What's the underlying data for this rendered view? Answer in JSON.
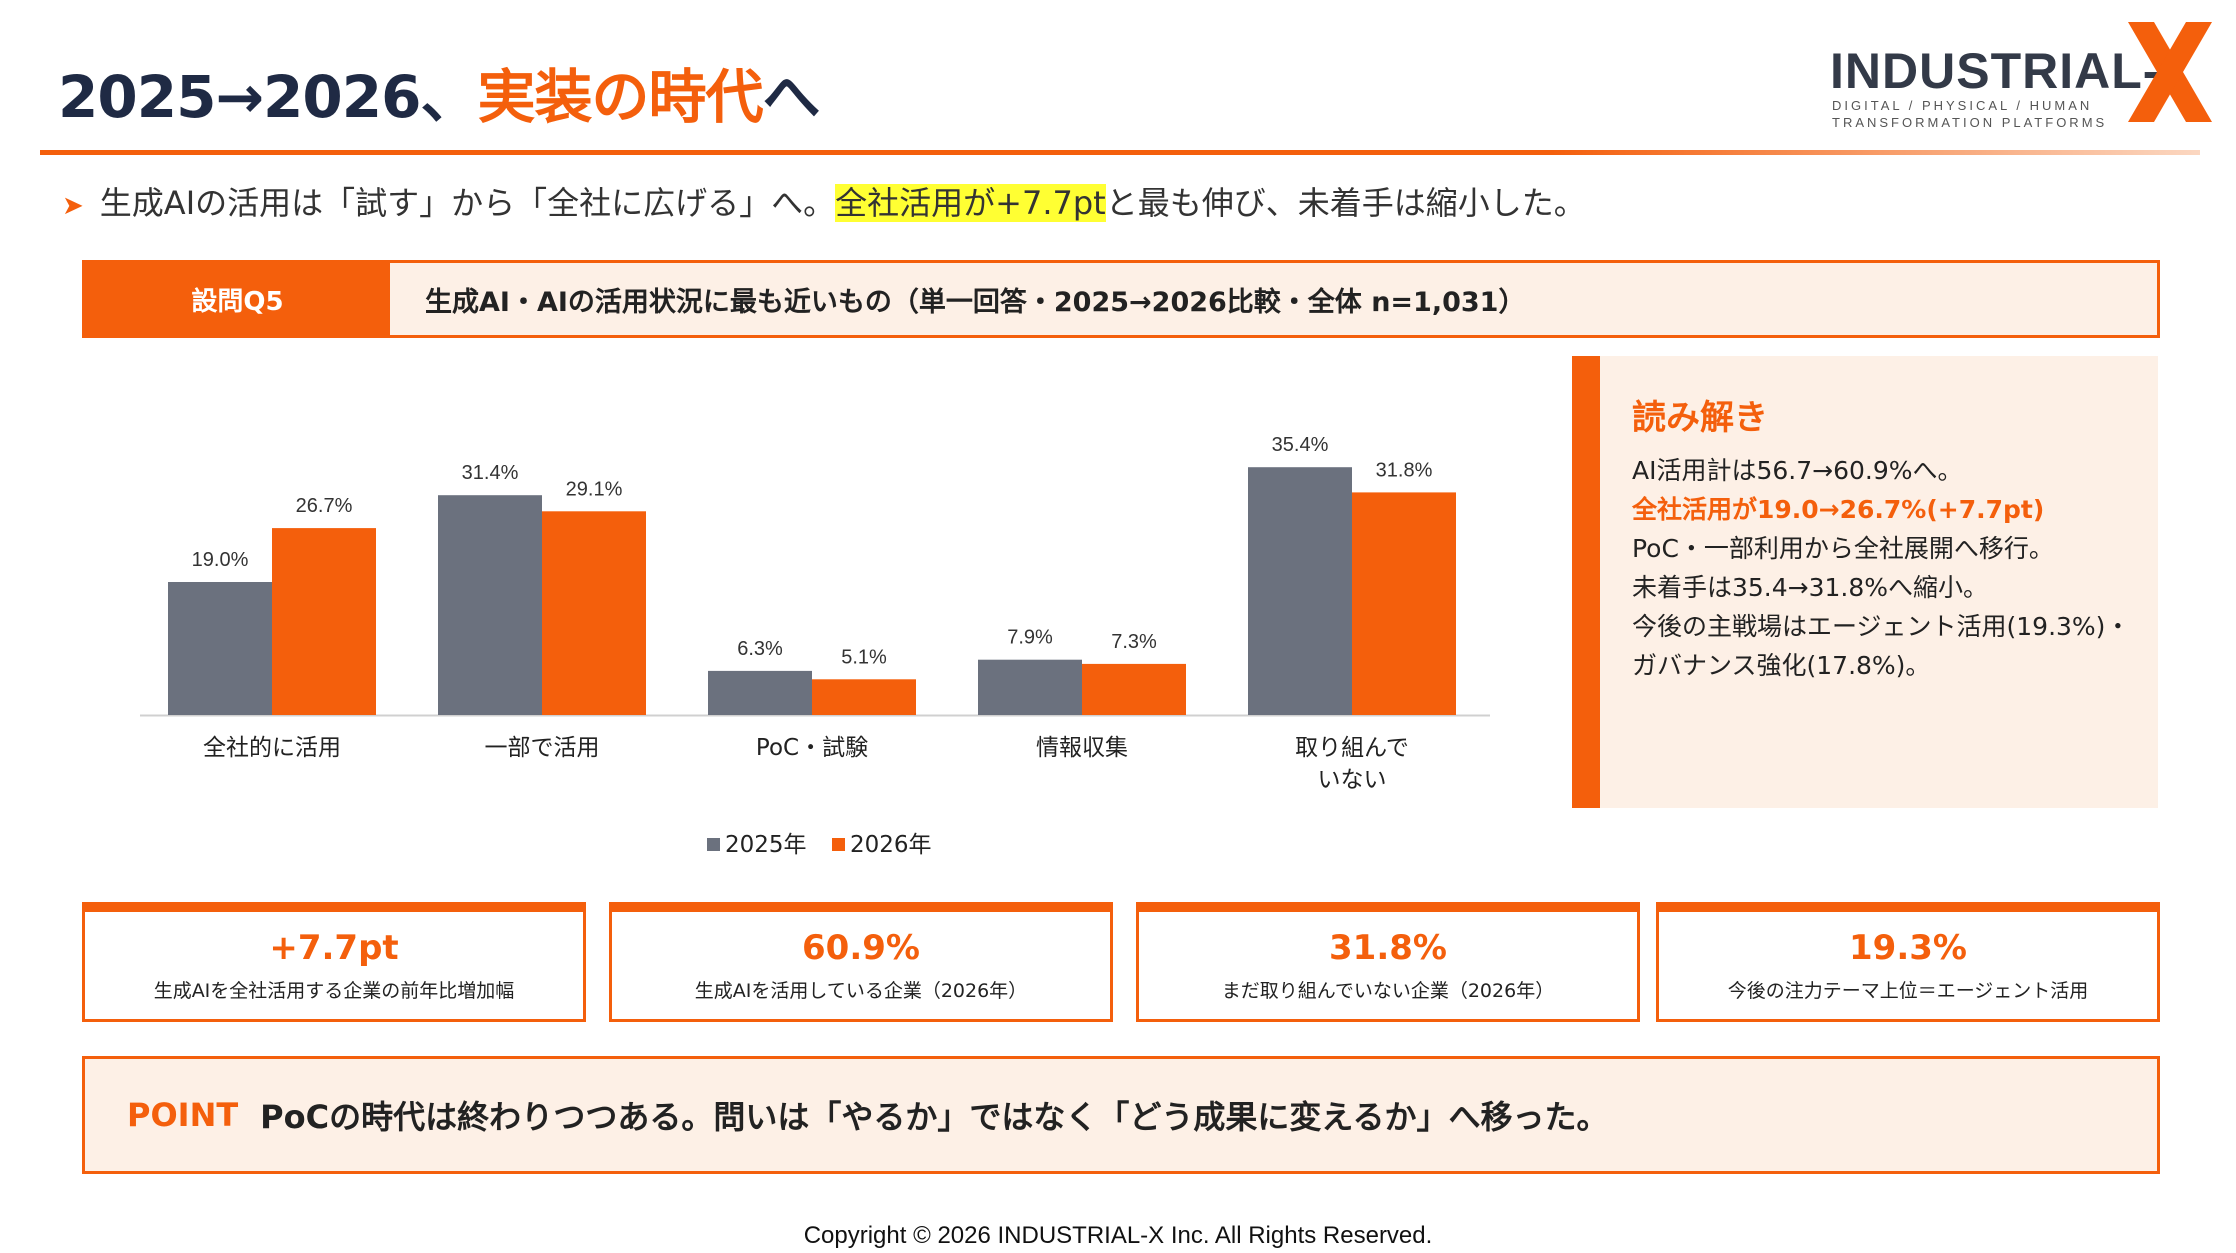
{
  "header": {
    "title_main": "2025→2026、",
    "title_accent": "実装の時代",
    "title_tail": "へ"
  },
  "logo": {
    "word": "INDUSTRIAL-",
    "letter": "X",
    "tagline1": "DIGITAL / PHYSICAL / HUMAN",
    "tagline2": "TRANSFORMATION PLATFORMS"
  },
  "lead": {
    "pre": "生成AIの活用は「試す」から「全社に広げる」へ。",
    "highlight": "全社活用が+7.7pt",
    "post": "と最も伸び、未着手は縮小した。"
  },
  "question": {
    "tag": "設問Q5",
    "text": "生成AI・AIの活用状況に最も近いもの（単一回答・2025→2026比較・全体 n=1,031）"
  },
  "chart_data": {
    "type": "bar",
    "categories": [
      [
        "全社的に活用"
      ],
      [
        "一部で活用"
      ],
      [
        "PoC・試験"
      ],
      [
        "情報収集"
      ],
      [
        "取り組んで",
        "いない"
      ]
    ],
    "series": [
      {
        "name": "2025年",
        "color": "#6b717e",
        "values": [
          19.0,
          31.4,
          6.3,
          7.9,
          35.4
        ],
        "labels": [
          "19.0%",
          "31.4%",
          "6.3%",
          "7.9%",
          "35.4%"
        ]
      },
      {
        "name": "2026年",
        "color": "#f45f0c",
        "values": [
          26.7,
          29.1,
          5.1,
          7.3,
          31.8
        ],
        "labels": [
          "26.7%",
          "29.1%",
          "5.1%",
          "7.3%",
          "31.8%"
        ]
      }
    ],
    "ylim": [
      0,
      40
    ],
    "grid": false,
    "legend": "bottom-center"
  },
  "reading": {
    "head": "読み解き",
    "l1": "AI活用計は56.7→60.9%へ。",
    "l2": "全社活用が19.0→26.7%(+7.7pt)",
    "l3": "PoC・一部利用から全社展開へ移行。",
    "l4": "未着手は35.4→31.8%へ縮小。",
    "l5": "今後の主戦場はエージェント活用(19.3%)・",
    "l6": "ガバナンス強化(17.8%)。"
  },
  "kpis": [
    {
      "value": "+7.7pt",
      "label": "生成AIを全社活用する企業の前年比増加幅"
    },
    {
      "value": "60.9%",
      "label": "生成AIを活用している企業（2026年）"
    },
    {
      "value": "31.8%",
      "label": "まだ取り組んでいない企業（2026年）"
    },
    {
      "value": "19.3%",
      "label": "今後の注力テーマ上位＝エージェント活用"
    }
  ],
  "point": {
    "label": "POINT",
    "text": "PoCの時代は終わりつつある。問いは「やるか」ではなく「どう成果に変えるか」へ移った。"
  },
  "footer": {
    "copyright": "Copyright © 2026 INDUSTRIAL-X Inc. All Rights Reserved."
  },
  "colors": {
    "accent": "#f45f0c",
    "gray": "#6b717e",
    "panel": "#fdf0e6"
  }
}
